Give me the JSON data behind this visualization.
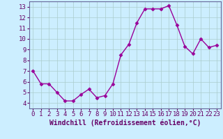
{
  "x": [
    0,
    1,
    2,
    3,
    4,
    5,
    6,
    7,
    8,
    9,
    10,
    11,
    12,
    13,
    14,
    15,
    16,
    17,
    18,
    19,
    20,
    21,
    22,
    23
  ],
  "y": [
    7.0,
    5.8,
    5.8,
    5.0,
    4.2,
    4.2,
    4.8,
    5.3,
    4.5,
    4.7,
    5.8,
    8.5,
    9.5,
    11.5,
    12.8,
    12.8,
    12.8,
    13.1,
    11.3,
    9.3,
    8.6,
    10.0,
    9.2,
    9.4
  ],
  "line_color": "#990099",
  "marker": "D",
  "marker_size": 2.5,
  "bg_color": "#cceeff",
  "grid_color": "#aacccc",
  "xlabel": "Windchill (Refroidissement éolien,°C)",
  "xlim": [
    -0.5,
    23.5
  ],
  "ylim": [
    3.5,
    13.5
  ],
  "yticks": [
    4,
    5,
    6,
    7,
    8,
    9,
    10,
    11,
    12,
    13
  ],
  "xticks": [
    0,
    1,
    2,
    3,
    4,
    5,
    6,
    7,
    8,
    9,
    10,
    11,
    12,
    13,
    14,
    15,
    16,
    17,
    18,
    19,
    20,
    21,
    22,
    23
  ],
  "xlabel_fontsize": 7.0,
  "tick_fontsize": 6.5,
  "line_width": 1.0
}
